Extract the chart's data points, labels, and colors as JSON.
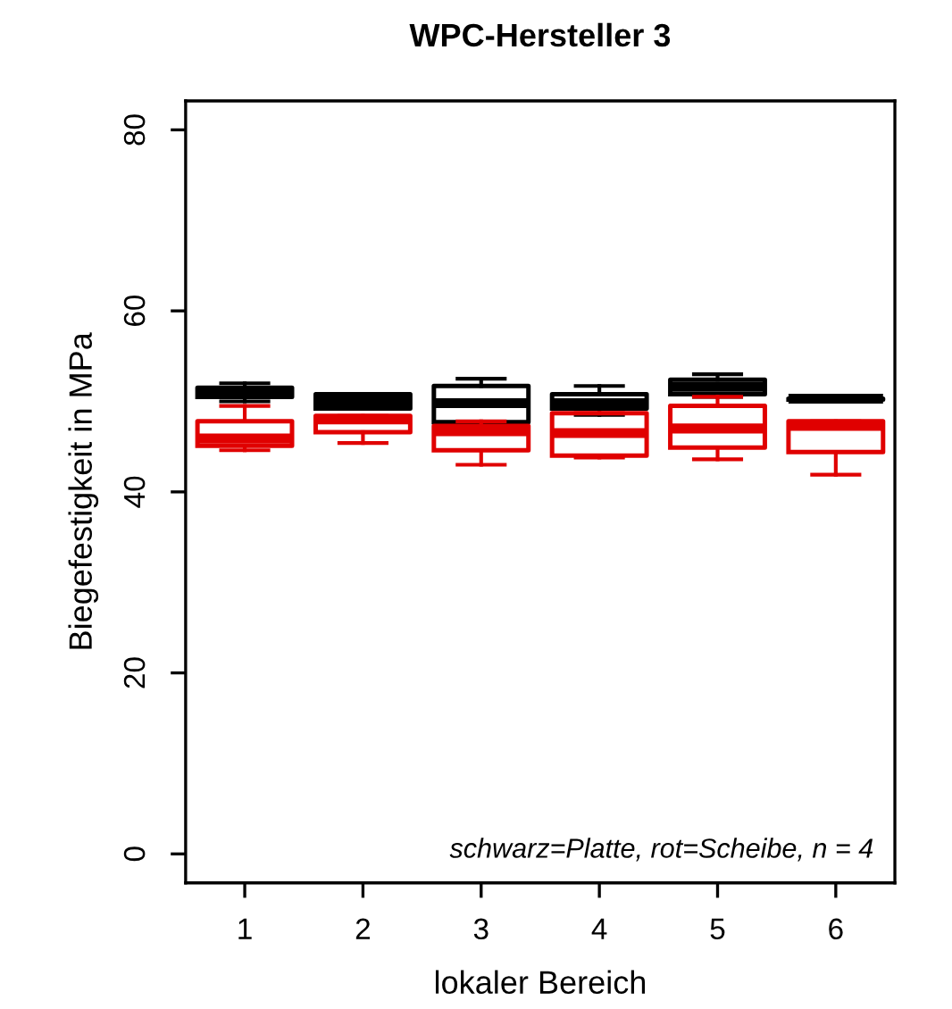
{
  "chart_data": {
    "type": "box",
    "title": "WPC-Hersteller 3",
    "xlabel": "lokaler Bereich",
    "ylabel": "Biegefestigkeit in MPa",
    "categories": [
      "1",
      "2",
      "3",
      "4",
      "5",
      "6"
    ],
    "series": [
      {
        "color": "#000000",
        "boxes": [
          {
            "low": 50.0,
            "q1": 50.5,
            "median": 51.0,
            "q3": 51.5,
            "high": 52.0
          },
          {
            "low": 49.2,
            "q1": 49.2,
            "median": 50.0,
            "q3": 50.8,
            "high": 50.8
          },
          {
            "low": 47.5,
            "q1": 47.7,
            "median": 49.8,
            "q3": 51.7,
            "high": 52.5
          },
          {
            "low": 48.5,
            "q1": 49.2,
            "median": 49.8,
            "q3": 50.8,
            "high": 51.7
          },
          {
            "low": 50.5,
            "q1": 50.8,
            "median": 51.6,
            "q3": 52.4,
            "high": 53.0
          },
          {
            "low": 50.1,
            "q1": 50.2,
            "median": 50.3,
            "q3": 50.3,
            "high": 50.4
          }
        ]
      },
      {
        "color": "#e00000",
        "boxes": [
          {
            "low": 44.6,
            "q1": 45.1,
            "median": 45.9,
            "q3": 47.8,
            "high": 49.5
          },
          {
            "low": 45.4,
            "q1": 46.6,
            "median": 48.0,
            "q3": 48.4,
            "high": 48.4
          },
          {
            "low": 43.0,
            "q1": 44.6,
            "median": 46.7,
            "q3": 47.3,
            "high": 47.8
          },
          {
            "low": 43.8,
            "q1": 44.0,
            "median": 46.5,
            "q3": 48.7,
            "high": 48.7
          },
          {
            "low": 43.6,
            "q1": 44.9,
            "median": 47.0,
            "q3": 49.5,
            "high": 50.5
          },
          {
            "low": 41.9,
            "q1": 44.4,
            "median": 47.3,
            "q3": 47.8,
            "high": 47.8
          }
        ]
      }
    ],
    "ylim": [
      -3.2,
      83.2
    ],
    "yticks": [
      0,
      20,
      40,
      60,
      80
    ],
    "grid": false,
    "annotations": [
      "schwarz=Platte, rot=Scheibe, n = 4"
    ]
  }
}
